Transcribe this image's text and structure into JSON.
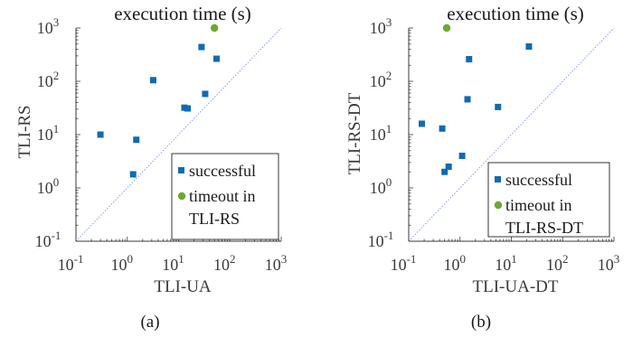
{
  "chart_data": [
    {
      "type": "scatter",
      "panel_caption": "(a)",
      "title": "execution time (s)",
      "xlabel": "TLI-UA",
      "ylabel": "TLI-RS",
      "x_scale": "log",
      "y_scale": "log",
      "xlim": [
        0.1,
        1000
      ],
      "ylim": [
        0.1,
        1000
      ],
      "x_tick_labels": [
        {
          "base": "10",
          "exp": "-1"
        },
        {
          "base": "10",
          "exp": "0"
        },
        {
          "base": "10",
          "exp": "1"
        },
        {
          "base": "10",
          "exp": "2"
        },
        {
          "base": "10",
          "exp": "3"
        }
      ],
      "y_tick_labels": [
        {
          "base": "10",
          "exp": "-1"
        },
        {
          "base": "10",
          "exp": "0"
        },
        {
          "base": "10",
          "exp": "1"
        },
        {
          "base": "10",
          "exp": "2"
        },
        {
          "base": "10",
          "exp": "3"
        }
      ],
      "grid": false,
      "reference_line": "y = x",
      "legend_position": "bottom-right",
      "series": [
        {
          "name": "successful",
          "marker": "square",
          "color": "#0f6bb5",
          "points": [
            [
              0.3,
              10
            ],
            [
              1.3,
              1.8
            ],
            [
              1.5,
              8
            ],
            [
              3.2,
              105
            ],
            [
              13,
              32
            ],
            [
              15,
              31
            ],
            [
              28,
              440
            ],
            [
              33,
              58
            ],
            [
              55,
              265
            ]
          ]
        },
        {
          "name": "timeout in TLI-RS",
          "legend_lines": [
            "timeout in",
            "TLI-RS"
          ],
          "marker": "circle",
          "color": "#6aaa2e",
          "points": [
            [
              50,
              1000
            ]
          ]
        }
      ]
    },
    {
      "type": "scatter",
      "panel_caption": "(b)",
      "title": "execution time (s)",
      "xlabel": "TLI-UA-DT",
      "ylabel": "TLI-RS-DT",
      "x_scale": "log",
      "y_scale": "log",
      "xlim": [
        0.1,
        1000
      ],
      "ylim": [
        0.1,
        1000
      ],
      "x_tick_labels": [
        {
          "base": "10",
          "exp": "-1"
        },
        {
          "base": "10",
          "exp": "0"
        },
        {
          "base": "10",
          "exp": "1"
        },
        {
          "base": "10",
          "exp": "2"
        },
        {
          "base": "10",
          "exp": "3"
        }
      ],
      "y_tick_labels": [
        {
          "base": "10",
          "exp": "-1"
        },
        {
          "base": "10",
          "exp": "0"
        },
        {
          "base": "10",
          "exp": "1"
        },
        {
          "base": "10",
          "exp": "2"
        },
        {
          "base": "10",
          "exp": "3"
        }
      ],
      "grid": false,
      "reference_line": "y = x",
      "legend_position": "bottom-right",
      "series": [
        {
          "name": "successful",
          "marker": "square",
          "color": "#0f6bb5",
          "points": [
            [
              0.18,
              16
            ],
            [
              0.45,
              13
            ],
            [
              0.5,
              2
            ],
            [
              0.6,
              2.5
            ],
            [
              1.1,
              4
            ],
            [
              1.4,
              46
            ],
            [
              1.5,
              260
            ],
            [
              5.5,
              33
            ],
            [
              22,
              450
            ]
          ]
        },
        {
          "name": "timeout in TLI-RS-DT",
          "legend_lines": [
            "timeout in",
            "TLI-RS-DT"
          ],
          "marker": "circle",
          "color": "#6aaa2e",
          "points": [
            [
              0.55,
              1000
            ]
          ]
        }
      ]
    }
  ]
}
